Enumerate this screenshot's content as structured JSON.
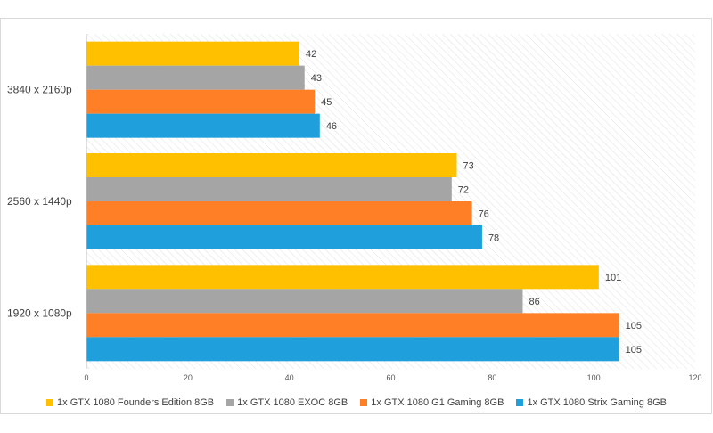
{
  "chart_data": {
    "type": "bar",
    "orientation": "horizontal",
    "title": "",
    "xlabel": "",
    "ylabel": "",
    "categories": [
      "3840 x 2160p",
      "2560 x 1440p",
      "1920 x 1080p"
    ],
    "xlim": [
      0,
      120
    ],
    "x_ticks": [
      "0",
      "20",
      "40",
      "60",
      "80",
      "100",
      "120"
    ],
    "grid": "hatched plot background",
    "legend_position": "bottom",
    "series": [
      {
        "name": "1x GTX 1080 Founders Edition 8GB",
        "color": "#ffc000",
        "values": [
          42,
          73,
          101
        ],
        "labels": [
          "42",
          "73",
          "101"
        ]
      },
      {
        "name": "1x GTX 1080 EXOC 8GB",
        "color": "#a5a5a5",
        "values": [
          43,
          72,
          86
        ],
        "labels": [
          "43",
          "72",
          "86"
        ]
      },
      {
        "name": "1x GTX 1080 G1 Gaming 8GB",
        "color": "#ff7f27",
        "values": [
          45,
          76,
          105
        ],
        "labels": [
          "45",
          "76",
          "105"
        ]
      },
      {
        "name": "1x GTX 1080 Strix Gaming 8GB",
        "color": "#1f9fdb",
        "values": [
          46,
          78,
          105
        ],
        "labels": [
          "46",
          "78",
          "105"
        ]
      }
    ]
  }
}
